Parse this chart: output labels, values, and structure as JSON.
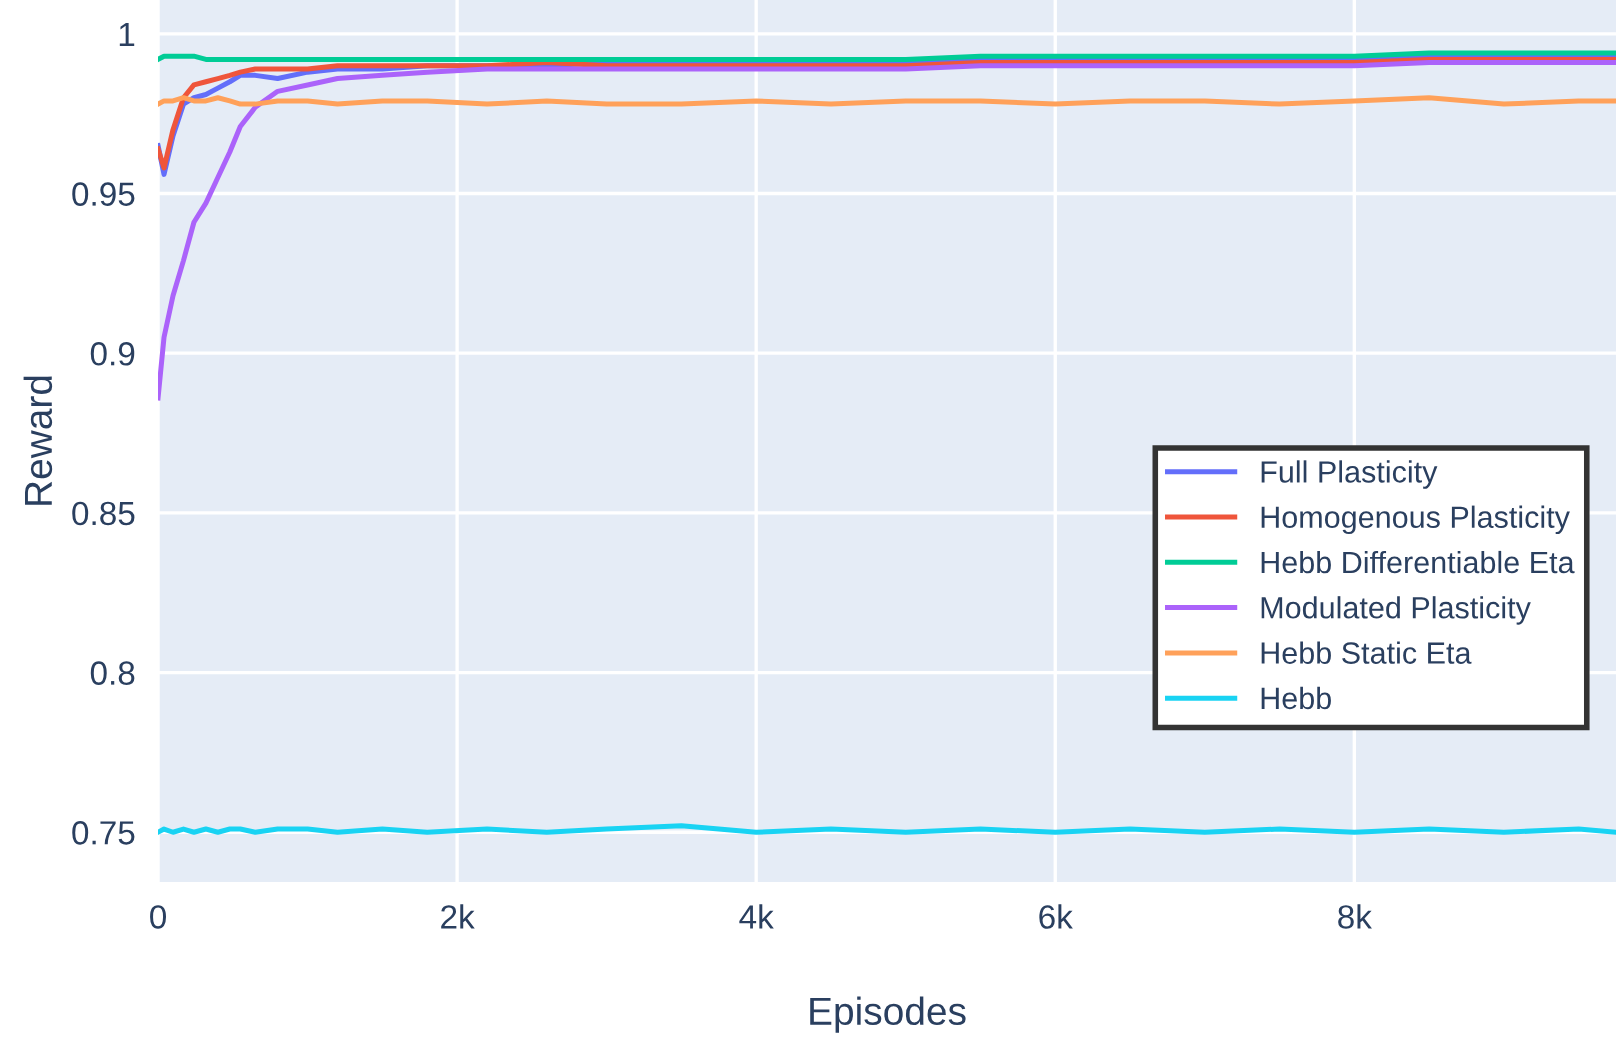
{
  "chart_data": {
    "type": "line",
    "xlabel": "Episodes",
    "ylabel": "Reward",
    "x": [
      0,
      40,
      100,
      170,
      240,
      320,
      400,
      480,
      550,
      650,
      800,
      1000,
      1200,
      1500,
      1800,
      2200,
      2600,
      3000,
      3500,
      4000,
      4500,
      5000,
      5500,
      6000,
      6500,
      7000,
      7500,
      8000,
      8500,
      9000,
      9500,
      9750
    ],
    "series": [
      {
        "name": "Full Plasticity",
        "color": "#636efa",
        "values": [
          0.965,
          0.956,
          0.968,
          0.978,
          0.98,
          0.981,
          0.983,
          0.985,
          0.987,
          0.987,
          0.986,
          0.988,
          0.989,
          0.989,
          0.99,
          0.99,
          0.99,
          0.991,
          0.991,
          0.991,
          0.991,
          0.991,
          0.992,
          0.992,
          0.992,
          0.992,
          0.992,
          0.992,
          0.993,
          0.993,
          0.993,
          0.993
        ]
      },
      {
        "name": "Homogenous Plasticity",
        "color": "#ef553b",
        "values": [
          0.964,
          0.958,
          0.97,
          0.98,
          0.984,
          0.985,
          0.986,
          0.987,
          0.988,
          0.989,
          0.989,
          0.989,
          0.99,
          0.99,
          0.99,
          0.99,
          0.991,
          0.99,
          0.99,
          0.99,
          0.99,
          0.99,
          0.991,
          0.991,
          0.991,
          0.991,
          0.991,
          0.991,
          0.992,
          0.992,
          0.992,
          0.992
        ]
      },
      {
        "name": "Hebb Differentiable Eta",
        "color": "#00cc96",
        "values": [
          0.992,
          0.993,
          0.993,
          0.993,
          0.993,
          0.992,
          0.992,
          0.992,
          0.992,
          0.992,
          0.992,
          0.992,
          0.992,
          0.992,
          0.992,
          0.992,
          0.992,
          0.992,
          0.992,
          0.992,
          0.992,
          0.992,
          0.993,
          0.993,
          0.993,
          0.993,
          0.993,
          0.993,
          0.994,
          0.994,
          0.994,
          0.994
        ]
      },
      {
        "name": "Modulated Plasticity",
        "color": "#ab63fa",
        "values": [
          0.886,
          0.905,
          0.918,
          0.929,
          0.941,
          0.947,
          0.955,
          0.963,
          0.971,
          0.977,
          0.982,
          0.984,
          0.986,
          0.987,
          0.988,
          0.989,
          0.989,
          0.989,
          0.989,
          0.989,
          0.989,
          0.989,
          0.99,
          0.99,
          0.99,
          0.99,
          0.99,
          0.99,
          0.991,
          0.991,
          0.991,
          0.991
        ]
      },
      {
        "name": "Hebb Static Eta",
        "color": "#ffa15a",
        "values": [
          0.978,
          0.979,
          0.979,
          0.98,
          0.979,
          0.979,
          0.98,
          0.979,
          0.978,
          0.978,
          0.979,
          0.979,
          0.978,
          0.979,
          0.979,
          0.978,
          0.979,
          0.978,
          0.978,
          0.979,
          0.978,
          0.979,
          0.979,
          0.978,
          0.979,
          0.979,
          0.978,
          0.979,
          0.98,
          0.978,
          0.979,
          0.979
        ]
      },
      {
        "name": "Hebb",
        "color": "#19d3f3",
        "values": [
          0.75,
          0.751,
          0.75,
          0.751,
          0.75,
          0.751,
          0.75,
          0.751,
          0.751,
          0.75,
          0.751,
          0.751,
          0.75,
          0.751,
          0.75,
          0.751,
          0.75,
          0.751,
          0.752,
          0.75,
          0.751,
          0.75,
          0.751,
          0.75,
          0.751,
          0.75,
          0.751,
          0.75,
          0.751,
          0.75,
          0.751,
          0.75
        ]
      }
    ],
    "xlim": [
      0,
      9750
    ],
    "xticks": [
      0,
      {
        "value": 2000,
        "label": "2k"
      },
      {
        "value": 4000,
        "label": "4k"
      },
      {
        "value": 6000,
        "label": "6k"
      },
      {
        "value": 8000,
        "label": "8k"
      }
    ],
    "ylim": [
      0.7344,
      1.0106
    ],
    "yticks": [
      0.75,
      0.8,
      0.85,
      0.9,
      0.95,
      1
    ],
    "grid": true,
    "legend": "right",
    "marker": "none",
    "line_style": "solid"
  }
}
